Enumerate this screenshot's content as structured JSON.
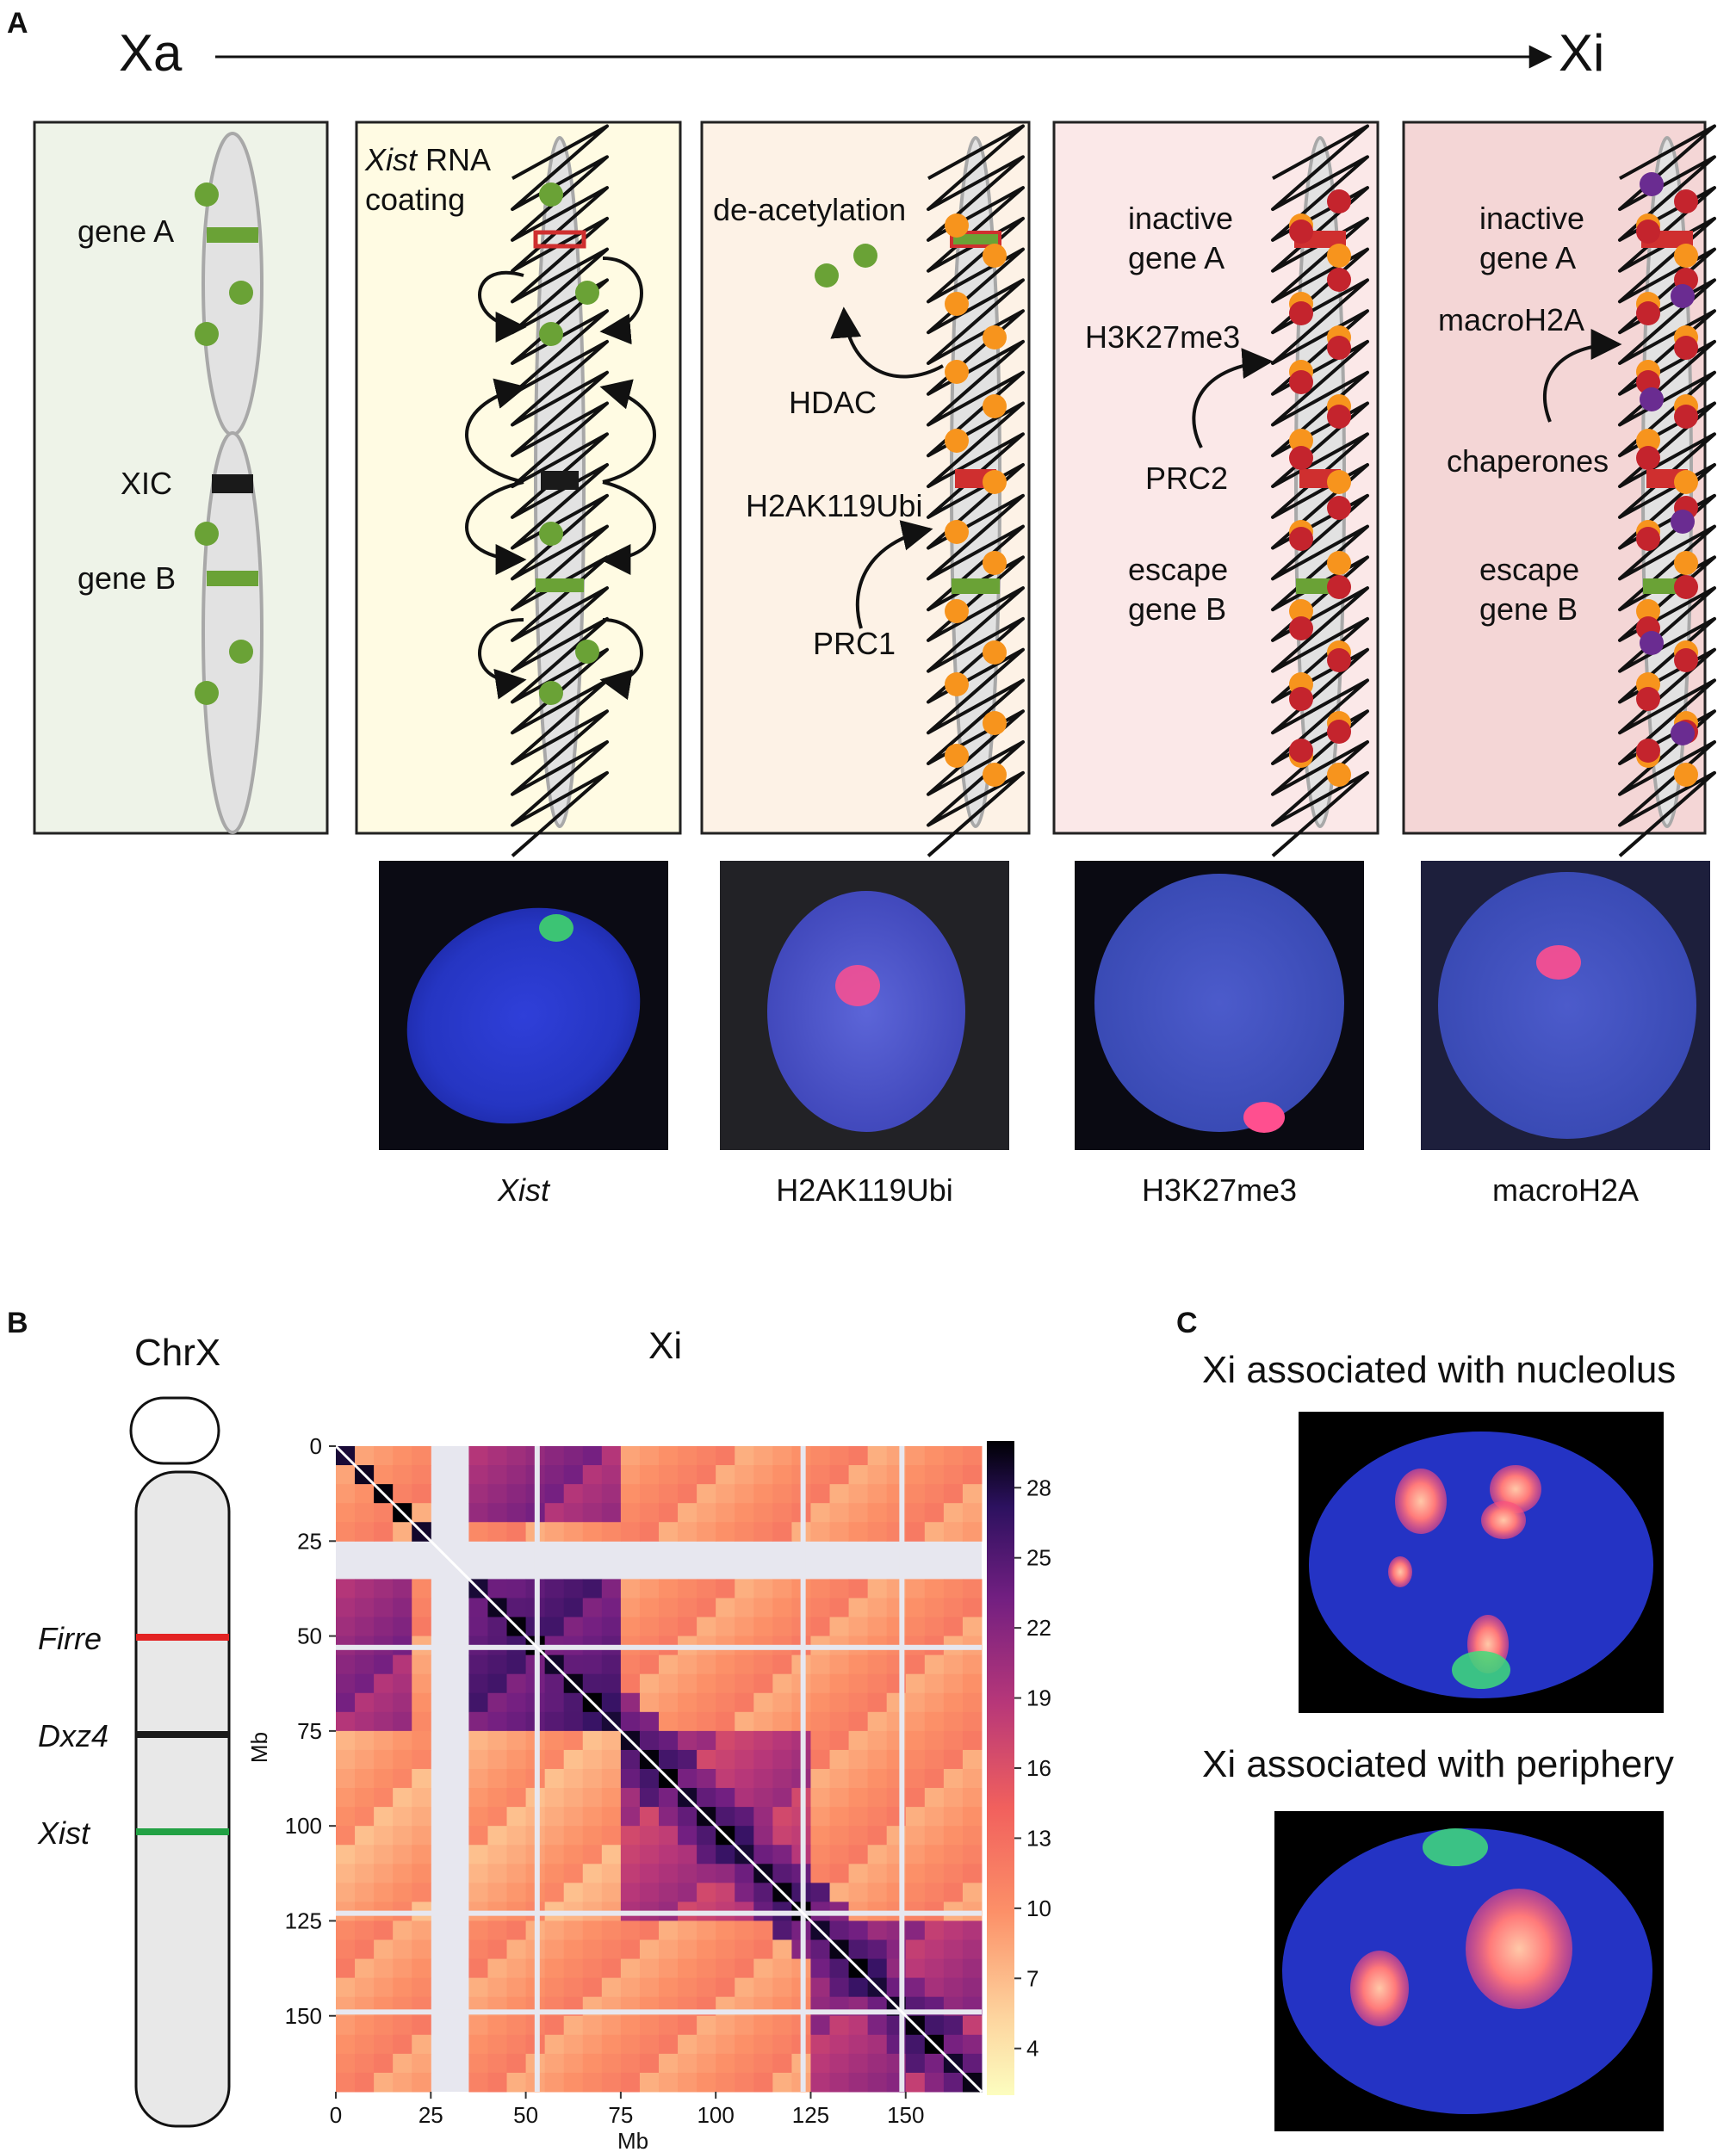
{
  "panel_letters": {
    "a": "A",
    "b": "B",
    "c": "C"
  },
  "timeline": {
    "start": "Xa",
    "end": "Xi"
  },
  "stages": [
    {
      "id": "stage1",
      "bg": "#eef3e8",
      "labels": [
        {
          "text": "gene A"
        },
        {
          "text": "XIC"
        },
        {
          "text": "gene B"
        }
      ]
    },
    {
      "id": "stage2",
      "bg": "#fffbe3",
      "labels": [
        {
          "text": "Xist",
          "italic": true,
          "suffix": " RNA"
        },
        {
          "text": "coating"
        }
      ]
    },
    {
      "id": "stage3",
      "bg": "#fdf2e6",
      "labels": [
        {
          "text": "de-acetylation"
        },
        {
          "text": "HDAC"
        },
        {
          "text": "H2AK119Ubi"
        },
        {
          "text": "PRC1"
        }
      ]
    },
    {
      "id": "stage4",
      "bg": "#fbe8e8",
      "labels": [
        {
          "text": "inactive"
        },
        {
          "text": "gene A"
        },
        {
          "text": "H3K27me3"
        },
        {
          "text": "PRC2"
        },
        {
          "text": "escape"
        },
        {
          "text": "gene B"
        }
      ]
    },
    {
      "id": "stage5",
      "bg": "#f4d6d6",
      "labels": [
        {
          "text": "inactive"
        },
        {
          "text": "gene A"
        },
        {
          "text": "macroH2A"
        },
        {
          "text": "chaperones"
        },
        {
          "text": "escape"
        },
        {
          "text": "gene B"
        }
      ]
    }
  ],
  "micrographs": [
    {
      "caption": "Xist",
      "italic": true,
      "signal": "#3fd46b"
    },
    {
      "caption": "H2AK119Ubi",
      "italic": false,
      "signal": "#ff4f8f"
    },
    {
      "caption": "H3K27me3",
      "italic": false,
      "signal": "#ff4f8f"
    },
    {
      "caption": "macroH2A",
      "italic": false,
      "signal": "#ff4f8f"
    }
  ],
  "colors": {
    "active_gene": "#6aa236",
    "xic": "#1a1a1a",
    "silenced_gene": "#cf2f2f",
    "acetyl_dot": "#6aa236",
    "ubi_dot": "#f7941d",
    "me3_dot": "#c4242d",
    "macro_dot": "#6a2c91",
    "chromosome_fill": "#e2e2e2",
    "chromosome_stroke": "#a8a8a8",
    "firre": "#e32222",
    "dxz4": "#1a1a1a",
    "xist_band": "#22a144"
  },
  "chrx": {
    "title": "ChrX",
    "bands": [
      {
        "name": "Firre"
      },
      {
        "name": "Dxz4"
      },
      {
        "name": "Xist"
      }
    ]
  },
  "chart_data": {
    "type": "heatmap",
    "title": "Xi",
    "xlabel": "Mb",
    "ylabel": "Mb",
    "xticks": [
      0,
      25,
      50,
      75,
      100,
      125,
      150
    ],
    "yticks": [
      0,
      25,
      50,
      75,
      100,
      125,
      150
    ],
    "range_mb": [
      0,
      170
    ],
    "colorbar": {
      "ticks": [
        4,
        7,
        10,
        13,
        16,
        19,
        22,
        25,
        28
      ],
      "range": [
        2,
        30
      ],
      "colormap": "magma_r"
    },
    "unmappable_regions_mb": [
      [
        22,
        33
      ]
    ],
    "mask_lines_mb": [
      53,
      123,
      149
    ],
    "hot_blocks_mb": [
      {
        "rows": [
          0,
          22
        ],
        "cols": [
          33,
          75
        ],
        "level": 19
      },
      {
        "rows": [
          33,
          75
        ],
        "cols": [
          0,
          22
        ],
        "level": 19
      },
      {
        "rows": [
          33,
          75
        ],
        "cols": [
          33,
          75
        ],
        "level": 22
      },
      {
        "rows": [
          75,
          123
        ],
        "cols": [
          75,
          123
        ],
        "level": 17
      },
      {
        "rows": [
          123,
          170
        ],
        "cols": [
          123,
          170
        ],
        "level": 18
      }
    ]
  },
  "panel_c": {
    "titles": [
      "Xi associated with nucleolus",
      "Xi associated with periphery"
    ]
  }
}
